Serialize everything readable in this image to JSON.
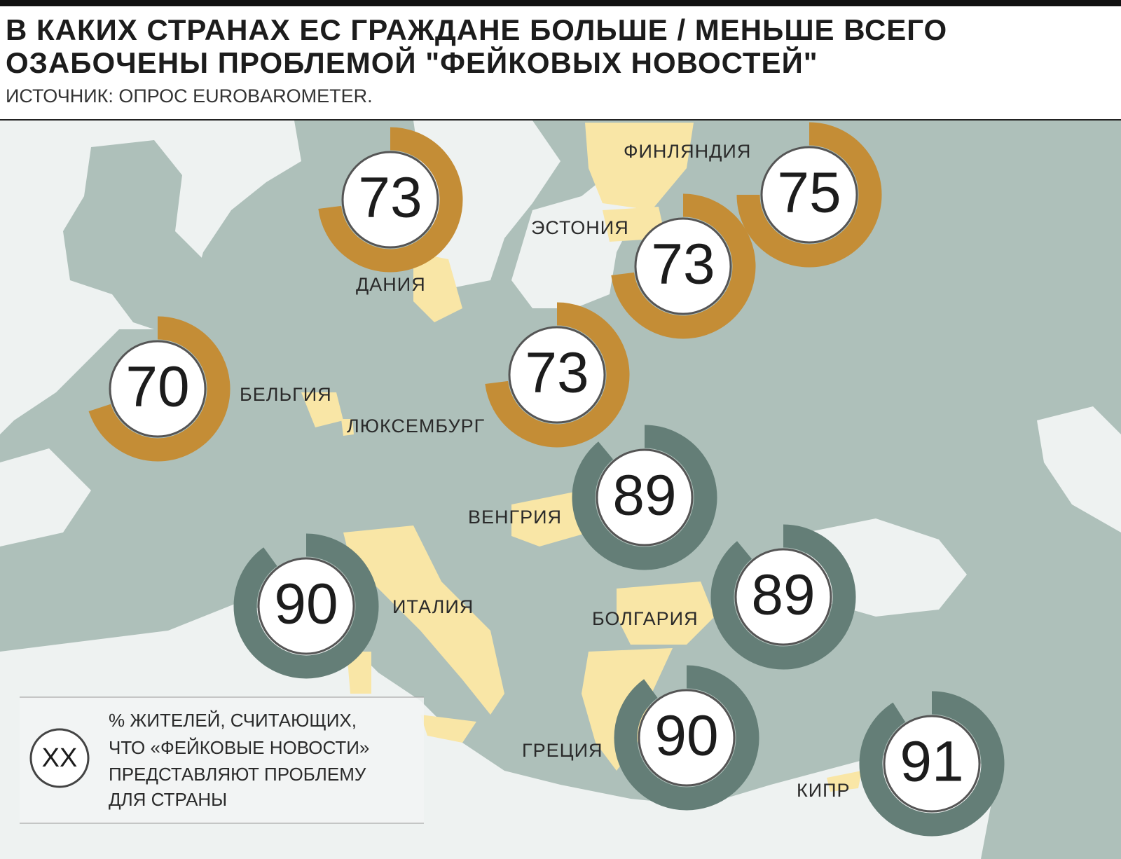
{
  "header": {
    "title_lines": [
      "В КАКИХ СТРАНАХ ЕС ГРАЖДАНЕ БОЛЬШЕ / МЕНЬШЕ ВСЕГО",
      "ОЗАБОЧЕНЫ ПРОБЛЕМОЙ \"ФЕЙКОВЫХ НОВОСТЕЙ\""
    ],
    "source": "ИСТОЧНИК: ОПРОС EUROBAROMETER."
  },
  "countries": [
    {
      "name": "ДАНИЯ",
      "value": 73,
      "color": "#c48d36"
    },
    {
      "name": "ФИНЛЯНДИЯ",
      "value": 75,
      "color": "#c48d36"
    },
    {
      "name": "ЭСТОНИЯ",
      "value": 73,
      "color": "#c48d36"
    },
    {
      "name": "БЕЛЬГИЯ",
      "value": 70,
      "color": "#c48d36"
    },
    {
      "name": "ЛЮКСЕМБУРГ",
      "value": 73,
      "color": "#c48d36"
    },
    {
      "name": "ВЕНГРИЯ",
      "value": 89,
      "color": "#647e77"
    },
    {
      "name": "ИТАЛИЯ",
      "value": 90,
      "color": "#647e77"
    },
    {
      "name": "БОЛГАРИЯ",
      "value": 89,
      "color": "#647e77"
    },
    {
      "name": "ГРЕЦИЯ",
      "value": 90,
      "color": "#647e77"
    },
    {
      "name": "КИПР",
      "value": 91,
      "color": "#647e77"
    }
  ],
  "legend": {
    "symbol": "XX",
    "text_lines": [
      "% ЖИТЕЛЕЙ, СЧИТАЮЩИХ,",
      "ЧТО «ФЕЙКОВЫЕ НОВОСТИ»",
      "ПРЕДСТАВЛЯЮТ ПРОБЛЕМУ",
      "ДЛЯ СТРАНЫ"
    ]
  }
}
